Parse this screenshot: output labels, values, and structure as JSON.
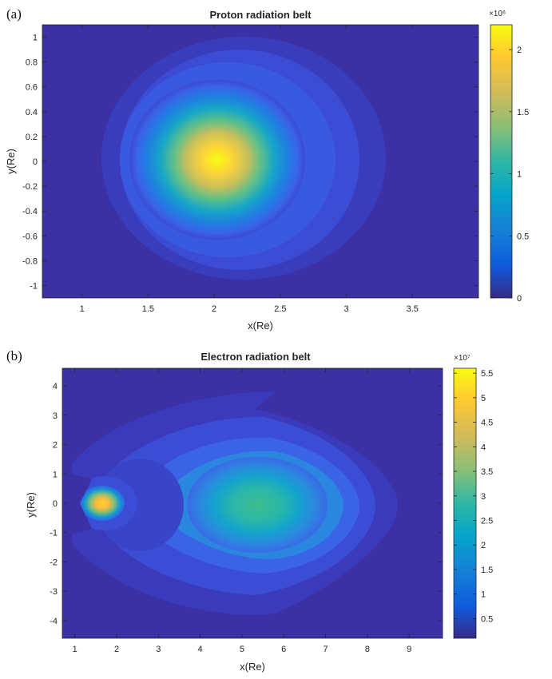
{
  "panels": {
    "a_label": "(a)",
    "b_label": "(b)"
  },
  "chart_data": [
    {
      "type": "heatmap",
      "title": "Proton radiation belt",
      "xlabel": "x(Re)",
      "ylabel": "y(Re)",
      "xlim": [
        0.7,
        4.0
      ],
      "ylim": [
        -1.1,
        1.1
      ],
      "xticks": [
        1,
        1.5,
        2,
        2.5,
        3,
        3.5
      ],
      "xtick_labels": [
        "1",
        "1.5",
        "2",
        "2.5",
        "3",
        "3.5"
      ],
      "yticks": [
        1,
        0.8,
        0.6,
        0.4,
        0.2,
        0,
        -0.2,
        -0.4,
        -0.6,
        -0.8,
        -1
      ],
      "ytick_labels": [
        "1",
        "0.8",
        "0.6",
        "0.4",
        "0.2",
        "0",
        "-0.2",
        "-0.4",
        "-0.6",
        "-0.8",
        "-1"
      ],
      "colorbar": {
        "range": [
          0,
          2.2
        ],
        "ticks": [
          0,
          0.5,
          1,
          1.5,
          2
        ],
        "tick_labels": [
          "0",
          "0.5",
          "1",
          "1.5",
          "2"
        ],
        "exponent_label": "×10⁶"
      },
      "peak": {
        "x": 1.97,
        "y": 0.0,
        "value": 2.2
      },
      "description_of_field": "single compact maximum near x=2, decaying outward to the 0 background beyond x≈1.3 and x≈3.2"
    },
    {
      "type": "heatmap",
      "title": "Electron radiation belt",
      "xlabel": "x(Re)",
      "ylabel": "y(Re)",
      "xlim": [
        0.7,
        9.8
      ],
      "ylim": [
        -4.6,
        4.6
      ],
      "xticks": [
        1,
        2,
        3,
        4,
        5,
        6,
        7,
        8,
        9
      ],
      "xtick_labels": [
        "1",
        "2",
        "3",
        "4",
        "5",
        "6",
        "7",
        "8",
        "9"
      ],
      "yticks": [
        4,
        3,
        2,
        1,
        0,
        -1,
        -2,
        -3,
        -4
      ],
      "ytick_labels": [
        "4",
        "3",
        "2",
        "1",
        "0",
        "-1",
        "-2",
        "-3",
        "-4"
      ],
      "colorbar": {
        "range": [
          0.1,
          5.6
        ],
        "ticks": [
          0.5,
          1,
          1.5,
          2,
          2.5,
          3,
          3.5,
          4,
          4.5,
          5,
          5.5
        ],
        "tick_labels": [
          "0.5",
          "1",
          "1.5",
          "2",
          "2.5",
          "3",
          "3.5",
          "4",
          "4.5",
          "5",
          "5.5"
        ],
        "exponent_label": "×10⁷"
      },
      "inner_peak": {
        "x": 1.65,
        "y": 0.0,
        "value": 5.2
      },
      "outer_belt_peak": {
        "x": 5.0,
        "y": 0.0,
        "value": 3.0
      }
    }
  ]
}
